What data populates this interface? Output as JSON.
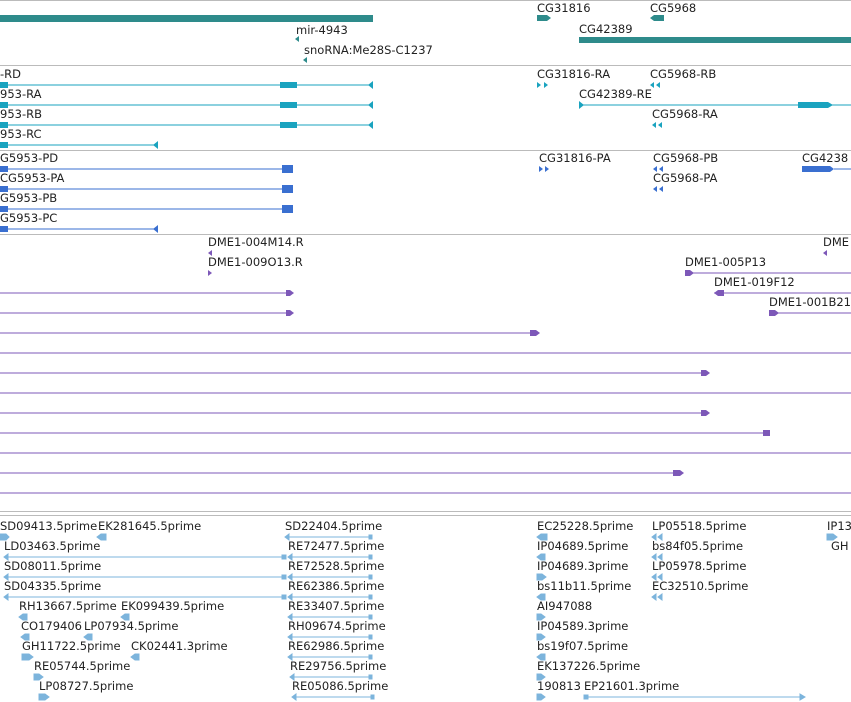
{
  "colors": {
    "gene": "#2e8b8b",
    "transcript": "#1aa3bf",
    "protein": "#3a6fd0",
    "clone": "#7d58b8",
    "est": "#7cb4dc",
    "divider": "#bbbbbb"
  },
  "tracks": {
    "genes": {
      "labels": [
        {
          "id": "mir",
          "text": "mir-4943"
        },
        {
          "id": "sno",
          "text": "snoRNA:Me28S-C1237"
        },
        {
          "id": "cg31816",
          "text": "CG31816"
        },
        {
          "id": "cg5968",
          "text": "CG5968"
        },
        {
          "id": "cg42389",
          "text": "CG42389"
        }
      ]
    },
    "transcripts": {
      "labels": [
        {
          "id": "rd",
          "text": "-RD"
        },
        {
          "id": "ra",
          "text": "953-RA"
        },
        {
          "id": "rb",
          "text": "953-RB"
        },
        {
          "id": "rc",
          "text": "953-RC"
        },
        {
          "id": "cg31816ra",
          "text": "CG31816-RA"
        },
        {
          "id": "cg5968rb",
          "text": "CG5968-RB"
        },
        {
          "id": "cg42389re",
          "text": "CG42389-RE"
        },
        {
          "id": "cg5968ra",
          "text": "CG5968-RA"
        }
      ]
    },
    "proteins": {
      "labels": [
        {
          "id": "pd",
          "text": "G5953-PD"
        },
        {
          "id": "pa",
          "text": "CG5953-PA"
        },
        {
          "id": "pb",
          "text": "G5953-PB"
        },
        {
          "id": "pc",
          "text": "G5953-PC"
        },
        {
          "id": "cg31816pa",
          "text": "CG31816-PA"
        },
        {
          "id": "cg5968pb",
          "text": "CG5968-PB"
        },
        {
          "id": "cg5968pa",
          "text": "CG5968-PA"
        },
        {
          "id": "cg4238",
          "text": "CG4238"
        }
      ]
    },
    "clones": {
      "labels": [
        {
          "id": "m14",
          "text": "DME1-004M14.R"
        },
        {
          "id": "o13",
          "text": "DME1-009O13.R"
        },
        {
          "id": "p13",
          "text": "DME1-005P13"
        },
        {
          "id": "f12",
          "text": "DME1-019F12"
        },
        {
          "id": "b21",
          "text": "DME1-001B21"
        },
        {
          "id": "dme",
          "text": "DME"
        }
      ]
    },
    "ests": {
      "labels": [
        {
          "id": "e1",
          "text": "SD09413.5prime"
        },
        {
          "id": "e2",
          "text": "EK281645.5prime"
        },
        {
          "id": "e3",
          "text": "SD22404.5prime"
        },
        {
          "id": "e4",
          "text": "EC25228.5prime"
        },
        {
          "id": "e5",
          "text": "LP05518.5prime"
        },
        {
          "id": "e6",
          "text": "IP13"
        },
        {
          "id": "e7",
          "text": "LD03463.5prime"
        },
        {
          "id": "e8",
          "text": "RE72477.5prime"
        },
        {
          "id": "e9",
          "text": "IP04689.5prime"
        },
        {
          "id": "e10",
          "text": "bs84f05.5prime"
        },
        {
          "id": "e11",
          "text": "GH"
        },
        {
          "id": "e12",
          "text": "SD08011.5prime"
        },
        {
          "id": "e13",
          "text": "RE72528.5prime"
        },
        {
          "id": "e14",
          "text": "IP04689.3prime"
        },
        {
          "id": "e15",
          "text": "LP05978.5prime"
        },
        {
          "id": "e16",
          "text": "SD04335.5prime"
        },
        {
          "id": "e17",
          "text": "RE62386.5prime"
        },
        {
          "id": "e18",
          "text": "bs11b11.5prime"
        },
        {
          "id": "e19",
          "text": "EC32510.5prime"
        },
        {
          "id": "e20",
          "text": "RH13667.5prime"
        },
        {
          "id": "e21",
          "text": "EK099439.5prime"
        },
        {
          "id": "e22",
          "text": "RE33407.5prime"
        },
        {
          "id": "e23",
          "text": "AI947088"
        },
        {
          "id": "e24",
          "text": "CO179406"
        },
        {
          "id": "e25",
          "text": "LP07934.5prime"
        },
        {
          "id": "e26",
          "text": "RH09674.5prime"
        },
        {
          "id": "e27",
          "text": "IP04589.3prime"
        },
        {
          "id": "e28",
          "text": "GH11722.5prime"
        },
        {
          "id": "e29",
          "text": "CK02441.3prime"
        },
        {
          "id": "e30",
          "text": "RE62986.5prime"
        },
        {
          "id": "e31",
          "text": "bs19f07.5prime"
        },
        {
          "id": "e32",
          "text": "RE05744.5prime"
        },
        {
          "id": "e33",
          "text": "RE29756.5prime"
        },
        {
          "id": "e34",
          "text": "EK137226.5prime"
        },
        {
          "id": "e35",
          "text": "LP08727.5prime"
        },
        {
          "id": "e36",
          "text": "RE05086.5prime"
        },
        {
          "id": "e37",
          "text": "190813"
        },
        {
          "id": "e38",
          "text": "EP21601.3prime"
        }
      ]
    }
  }
}
